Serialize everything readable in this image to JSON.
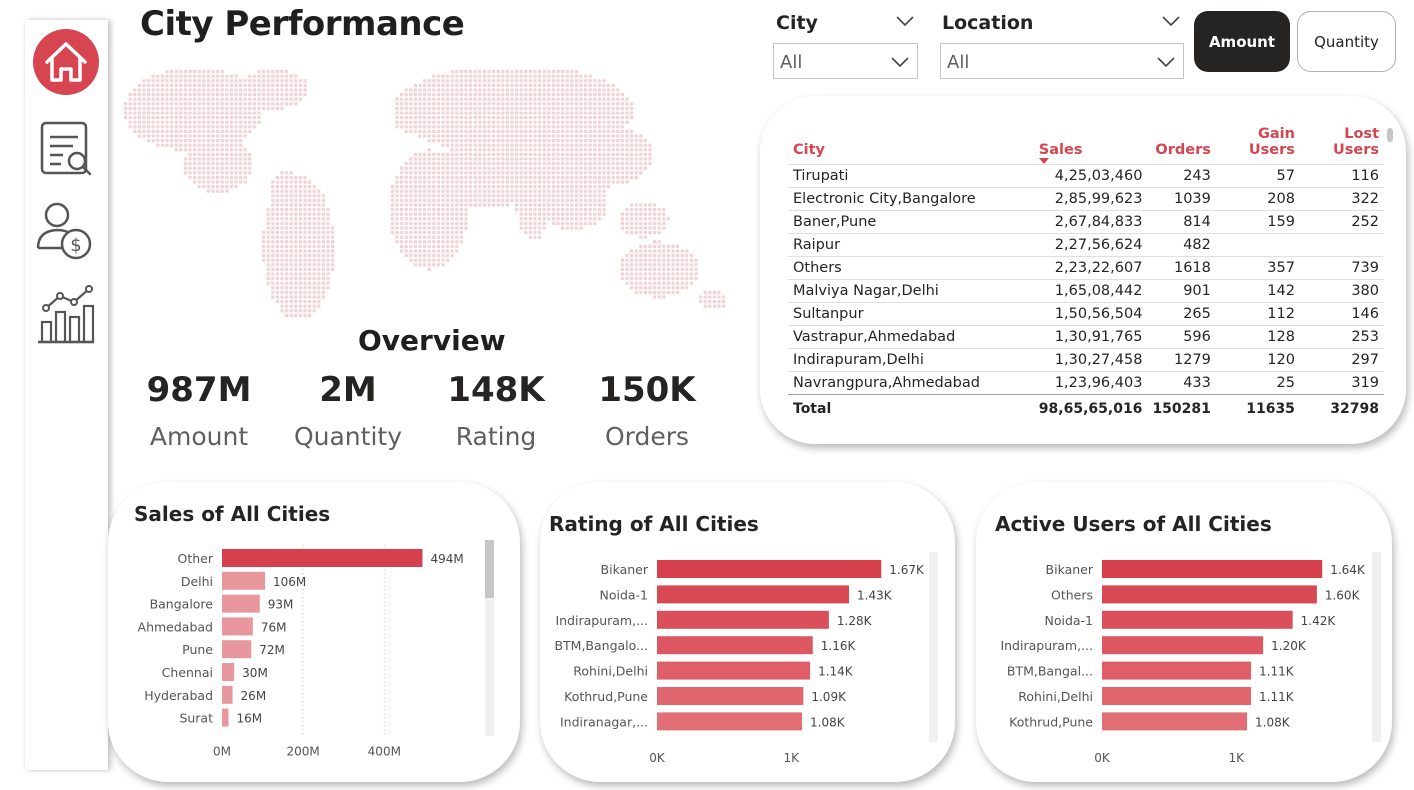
{
  "page": {
    "title": "City Performance"
  },
  "nav": [
    {
      "name": "home-icon",
      "active": true
    },
    {
      "name": "document-search-icon",
      "active": false
    },
    {
      "name": "user-dollar-icon",
      "active": false
    },
    {
      "name": "bar-trend-icon",
      "active": false
    }
  ],
  "overview": {
    "title": "Overview",
    "kpis": [
      {
        "value": "987M",
        "label": "Amount"
      },
      {
        "value": "2M",
        "label": "Quantity"
      },
      {
        "value": "148K",
        "label": "Rating"
      },
      {
        "value": "150K",
        "label": "Orders"
      }
    ]
  },
  "filters": {
    "city": {
      "title": "City",
      "value": "All"
    },
    "location": {
      "title": "Location",
      "value": "All"
    }
  },
  "toggle": {
    "amount": "Amount",
    "quantity": "Quantity",
    "active": "Amount"
  },
  "table": {
    "columns": [
      "City",
      "Sales",
      "Orders",
      "Gain Users",
      "Lost Users"
    ],
    "rows": [
      [
        "Tirupati",
        "4,25,03,460",
        "243",
        "57",
        "116"
      ],
      [
        "Electronic City,Bangalore",
        "2,85,99,623",
        "1039",
        "208",
        "322"
      ],
      [
        "Baner,Pune",
        "2,67,84,833",
        "814",
        "159",
        "252"
      ],
      [
        "Raipur",
        "2,27,56,624",
        "482",
        "",
        ""
      ],
      [
        "Others",
        "2,23,22,607",
        "1618",
        "357",
        "739"
      ],
      [
        "Malviya Nagar,Delhi",
        "1,65,08,442",
        "901",
        "142",
        "380"
      ],
      [
        "Sultanpur",
        "1,50,56,504",
        "265",
        "112",
        "146"
      ],
      [
        "Vastrapur,Ahmedabad",
        "1,30,91,765",
        "596",
        "128",
        "253"
      ],
      [
        "Indirapuram,Delhi",
        "1,30,27,458",
        "1279",
        "120",
        "297"
      ],
      [
        "Navrangpura,Ahmedabad",
        "1,23,96,403",
        "433",
        "25",
        "319"
      ]
    ],
    "total": [
      "Total",
      "98,65,65,016",
      "150281",
      "11635",
      "32798"
    ]
  },
  "colors": {
    "accent": "#d64550",
    "bar_dark": "#d6404c",
    "bar_light": "#e8979d",
    "dark": "#252423"
  },
  "chart_data": [
    {
      "type": "bar",
      "orientation": "horizontal",
      "title": "Sales of All Cities",
      "categories": [
        "Other",
        "Delhi",
        "Bangalore",
        "Ahmedabad",
        "Pune",
        "Chennai",
        "Hyderabad",
        "Surat"
      ],
      "values": [
        494,
        106,
        93,
        76,
        72,
        30,
        26,
        16
      ],
      "labels": [
        "494M",
        "106M",
        "93M",
        "76M",
        "72M",
        "30M",
        "26M",
        "16M"
      ],
      "xticks": [
        "0M",
        "200M",
        "400M"
      ],
      "xtick_values": [
        0,
        200,
        400
      ],
      "xlim": [
        0,
        520
      ],
      "grid": true
    },
    {
      "type": "bar",
      "orientation": "horizontal",
      "title": "Rating of All Cities",
      "categories": [
        "Bikaner",
        "Noida-1",
        "Indirapuram,...",
        "BTM,Bangalo...",
        "Rohini,Delhi",
        "Kothrud,Pune",
        "Indiranagar,..."
      ],
      "values": [
        1.67,
        1.43,
        1.28,
        1.16,
        1.14,
        1.09,
        1.08
      ],
      "labels": [
        "1.67K",
        "1.43K",
        "1.28K",
        "1.16K",
        "1.14K",
        "1.09K",
        "1.08K"
      ],
      "xticks": [
        "0K",
        "1K"
      ],
      "xtick_values": [
        0,
        1
      ],
      "xlim": [
        0,
        1.75
      ],
      "grid": false
    },
    {
      "type": "bar",
      "orientation": "horizontal",
      "title": "Active Users of All Cities",
      "categories": [
        "Bikaner",
        "Others",
        "Noida-1",
        "Indirapuram,...",
        "BTM,Bangal...",
        "Rohini,Delhi",
        "Kothrud,Pune"
      ],
      "values": [
        1.64,
        1.6,
        1.42,
        1.2,
        1.11,
        1.11,
        1.08
      ],
      "labels": [
        "1.64K",
        "1.60K",
        "1.42K",
        "1.20K",
        "1.11K",
        "1.11K",
        "1.08K"
      ],
      "xticks": [
        "0K",
        "1K"
      ],
      "xtick_values": [
        0,
        1
      ],
      "xlim": [
        0,
        1.75
      ],
      "grid": false
    }
  ]
}
